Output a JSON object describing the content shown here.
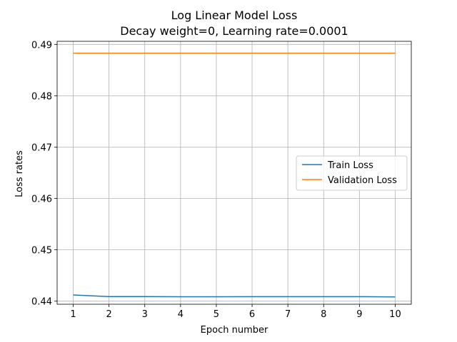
{
  "chart_data": {
    "type": "line",
    "title": "Log Linear Model Loss",
    "subtitle": "Decay weight=0, Learning rate=0.0001",
    "xlabel": "Epoch number",
    "ylabel": "Loss rates",
    "x": [
      1,
      2,
      3,
      4,
      5,
      6,
      7,
      8,
      9,
      10
    ],
    "xlim": [
      0.55,
      10.45
    ],
    "ylim": [
      0.4394,
      0.4906
    ],
    "xticks": [
      1,
      2,
      3,
      4,
      5,
      6,
      7,
      8,
      9,
      10
    ],
    "yticks": [
      0.44,
      0.45,
      0.46,
      0.47,
      0.48,
      0.49
    ],
    "grid": true,
    "legend_position": "center-right",
    "series": [
      {
        "name": "Train Loss",
        "color": "#1f77b4",
        "values": [
          0.4412,
          0.4409,
          0.4409,
          0.44085,
          0.44085,
          0.44088,
          0.44088,
          0.44088,
          0.44088,
          0.44082
        ]
      },
      {
        "name": "Validation Loss",
        "color": "#ff7f0e",
        "values": [
          0.4883,
          0.4883,
          0.4883,
          0.4883,
          0.4883,
          0.4883,
          0.4883,
          0.4883,
          0.4883,
          0.4883
        ]
      }
    ]
  }
}
